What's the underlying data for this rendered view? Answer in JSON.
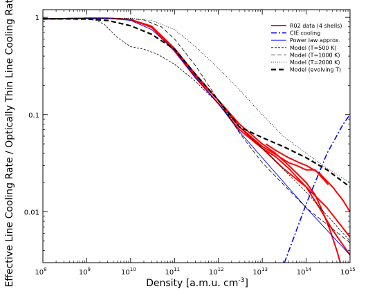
{
  "chart_data": {
    "type": "line",
    "title": "",
    "xlabel": "Density [a.m.u. cm",
    "xlabel_sup": "-3",
    "xlabel_end": "]",
    "ylabel": "Effective Line Cooling Rate / Optically Thin Line Cooling Rate",
    "xscale": "log",
    "yscale": "log",
    "xlim": [
      100000000.0,
      1000000000000000.0
    ],
    "ylim": [
      0.003,
      1.2
    ],
    "grid": false,
    "legend_position": "top-right",
    "x_ticks": [
      {
        "value": 100000000.0,
        "base": "10",
        "exp": "8"
      },
      {
        "value": 1000000000.0,
        "base": "10",
        "exp": "9"
      },
      {
        "value": 10000000000.0,
        "base": "10",
        "exp": "10"
      },
      {
        "value": 100000000000.0,
        "base": "10",
        "exp": "11"
      },
      {
        "value": 1000000000000.0,
        "base": "10",
        "exp": "12"
      },
      {
        "value": 10000000000000.0,
        "base": "10",
        "exp": "13"
      },
      {
        "value": 100000000000000.0,
        "base": "10",
        "exp": "14"
      },
      {
        "value": 1000000000000000.0,
        "base": "10",
        "exp": "15"
      }
    ],
    "y_ticks": [
      {
        "value": 1,
        "label": "1"
      },
      {
        "value": 0.1,
        "label": "0.1"
      },
      {
        "value": 0.01,
        "label": "0.01"
      }
    ],
    "series": [
      {
        "name": "R02 data (4 shells)",
        "color": "#ff0000",
        "dash": "solid",
        "width": 2,
        "lines": [
          [
            [
              100000000.0,
              0.96
            ],
            [
              1000000000.0,
              0.98
            ],
            [
              3000000000.0,
              0.98
            ],
            [
              10000000000.0,
              0.95
            ],
            [
              30000000000.0,
              0.8
            ],
            [
              100000000000.0,
              0.46
            ],
            [
              300000000000.0,
              0.25
            ],
            [
              1000000000000.0,
              0.14
            ],
            [
              3000000000000.0,
              0.075
            ],
            [
              10000000000000.0,
              0.045
            ],
            [
              30000000000000.0,
              0.028
            ],
            [
              100000000000000.0,
              0.018
            ],
            [
              300000000000000.0,
              0.011
            ],
            [
              1000000000000000.0,
              0.0055
            ]
          ],
          [
            [
              100000000.0,
              0.96
            ],
            [
              1000000000.0,
              0.98
            ],
            [
              3000000000.0,
              0.98
            ],
            [
              10000000000.0,
              0.95
            ],
            [
              30000000000.0,
              0.79
            ],
            [
              100000000000.0,
              0.45
            ],
            [
              300000000000.0,
              0.24
            ],
            [
              1000000000000.0,
              0.13
            ],
            [
              3000000000000.0,
              0.07
            ],
            [
              10000000000000.0,
              0.045
            ],
            [
              20000000000000.0,
              0.037
            ],
            [
              40000000000000.0,
              0.028
            ],
            [
              100000000000000.0,
              0.018
            ],
            [
              200000000000000.0,
              0.011
            ],
            [
              400000000000000.0,
              0.0065
            ],
            [
              1000000000000000.0,
              0.0036
            ]
          ],
          [
            [
              100000000.0,
              0.96
            ],
            [
              1000000000.0,
              0.98
            ],
            [
              3000000000.0,
              0.98
            ],
            [
              10000000000.0,
              0.95
            ],
            [
              30000000000.0,
              0.81
            ],
            [
              100000000000.0,
              0.48
            ],
            [
              300000000000.0,
              0.26
            ],
            [
              1000000000000.0,
              0.14
            ],
            [
              3000000000000.0,
              0.08
            ],
            [
              10000000000000.0,
              0.05
            ],
            [
              20000000000000.0,
              0.04
            ],
            [
              40000000000000.0,
              0.03
            ],
            [
              100000000000000.0,
              0.02
            ],
            [
              160000000000000.0,
              0.015
            ],
            [
              240000000000000.0,
              0.01
            ],
            [
              350000000000000.0,
              0.0065
            ],
            [
              500000000000000.0,
              0.004
            ],
            [
              600000000000000.0,
              0.003
            ]
          ],
          [
            [
              100000000.0,
              0.96
            ],
            [
              1000000000.0,
              0.98
            ],
            [
              3000000000.0,
              0.98
            ],
            [
              10000000000.0,
              0.95
            ],
            [
              30000000000.0,
              0.81
            ],
            [
              100000000000.0,
              0.47
            ],
            [
              300000000000.0,
              0.25
            ],
            [
              1000000000000.0,
              0.14
            ],
            [
              3000000000000.0,
              0.075
            ],
            [
              10000000000000.0,
              0.047
            ],
            [
              20000000000000.0,
              0.039
            ],
            [
              40000000000000.0,
              0.032
            ],
            [
              60000000000000.0,
              0.03
            ],
            [
              100000000000000.0,
              0.027
            ],
            [
              160000000000000.0,
              0.027
            ],
            [
              240000000000000.0,
              0.022
            ],
            [
              320000000000000.0,
              0.019
            ]
          ],
          [
            [
              12000000000000.0,
              0.05
            ],
            [
              20000000000000.0,
              0.043
            ],
            [
              40000000000000.0,
              0.036
            ],
            [
              70000000000000.0,
              0.032
            ],
            [
              100000000000000.0,
              0.03
            ],
            [
              200000000000000.0,
              0.025
            ],
            [
              400000000000000.0,
              0.018
            ],
            [
              700000000000000.0,
              0.013
            ],
            [
              1000000000000000.0,
              0.01
            ]
          ]
        ]
      },
      {
        "name": "CIE cooling",
        "color": "#0000ff",
        "dash": "8,3,2,3",
        "width": 1.6,
        "lines": [
          [
            [
              32000000000000.0,
              0.003
            ],
            [
              100000000000000.0,
              0.012
            ],
            [
              300000000000000.0,
              0.04
            ],
            [
              700000000000000.0,
              0.08
            ],
            [
              1000000000000000.0,
              0.1
            ]
          ]
        ]
      },
      {
        "name": "Power law approx.",
        "color": "#0000ff",
        "dash": "solid",
        "width": 0.9,
        "lines": [
          [
            [
              100000000.0,
              0.98
            ],
            [
              3000000000.0,
              0.98
            ],
            [
              10000000000.0,
              0.93
            ],
            [
              30000000000.0,
              0.75
            ],
            [
              100000000000.0,
              0.46
            ],
            [
              300000000000.0,
              0.24
            ],
            [
              1000000000000.0,
              0.13
            ],
            [
              3000000000000.0,
              0.067
            ],
            [
              10000000000000.0,
              0.036
            ],
            [
              100000000000000.0,
              0.011
            ],
            [
              1000000000000000.0,
              0.0036
            ]
          ]
        ]
      },
      {
        "name": "Model (T=500 K)",
        "color": "#000000",
        "dash": "3,2",
        "width": 0.8,
        "lines": [
          [
            [
              100000000.0,
              0.98
            ],
            [
              1000000000.0,
              0.97
            ],
            [
              1500000000.0,
              0.95
            ],
            [
              2500000000.0,
              0.85
            ],
            [
              5000000000.0,
              0.62
            ],
            [
              10000000000.0,
              0.5
            ],
            [
              20000000000.0,
              0.47
            ],
            [
              40000000000.0,
              0.42
            ],
            [
              100000000000.0,
              0.33
            ],
            [
              300000000000.0,
              0.22
            ],
            [
              1000000000000.0,
              0.13
            ],
            [
              3000000000000.0,
              0.075
            ],
            [
              10000000000000.0,
              0.045
            ],
            [
              100000000000000.0,
              0.016
            ],
            [
              1000000000000000.0,
              0.005
            ]
          ]
        ]
      },
      {
        "name": "Model (T=1000 K)",
        "color": "#000000",
        "dash": "6,3",
        "width": 0.8,
        "lines": [
          [
            [
              100000000.0,
              0.98
            ],
            [
              3000000000.0,
              0.98
            ],
            [
              10000000000.0,
              0.97
            ],
            [
              20000000000.0,
              0.94
            ],
            [
              50000000000.0,
              0.8
            ],
            [
              100000000000.0,
              0.6
            ],
            [
              300000000000.0,
              0.32
            ],
            [
              1000000000000.0,
              0.14
            ],
            [
              3000000000000.0,
              0.065
            ],
            [
              10000000000000.0,
              0.032
            ],
            [
              100000000000000.0,
              0.011
            ],
            [
              1000000000000000.0,
              0.0048
            ]
          ]
        ]
      },
      {
        "name": "Model (T=2000 K)",
        "color": "#000000",
        "dash": "1,2",
        "width": 0.8,
        "lines": [
          [
            [
              100000000.0,
              0.98
            ],
            [
              10000000000.0,
              0.98
            ],
            [
              30000000000.0,
              0.93
            ],
            [
              100000000000.0,
              0.75
            ],
            [
              300000000000.0,
              0.5
            ],
            [
              1000000000000.0,
              0.3
            ],
            [
              3000000000000.0,
              0.18
            ],
            [
              10000000000000.0,
              0.1
            ],
            [
              30000000000000.0,
              0.06
            ],
            [
              100000000000000.0,
              0.04
            ],
            [
              300000000000000.0,
              0.028
            ],
            [
              1000000000000000.0,
              0.02
            ]
          ]
        ]
      },
      {
        "name": "Model (evolving T)",
        "color": "#000000",
        "dash": "7,4",
        "width": 2.2,
        "lines": [
          [
            [
              100000000.0,
              0.97
            ],
            [
              1000000000.0,
              0.96
            ],
            [
              3000000000.0,
              0.93
            ],
            [
              10000000000.0,
              0.82
            ],
            [
              30000000000.0,
              0.67
            ],
            [
              100000000000.0,
              0.47
            ],
            [
              300000000000.0,
              0.26
            ],
            [
              1000000000000.0,
              0.14
            ],
            [
              3000000000000.0,
              0.075
            ],
            [
              10000000000000.0,
              0.058
            ],
            [
              30000000000000.0,
              0.047
            ],
            [
              100000000000000.0,
              0.036
            ],
            [
              300000000000000.0,
              0.027
            ],
            [
              1000000000000000.0,
              0.018
            ]
          ]
        ]
      }
    ]
  }
}
